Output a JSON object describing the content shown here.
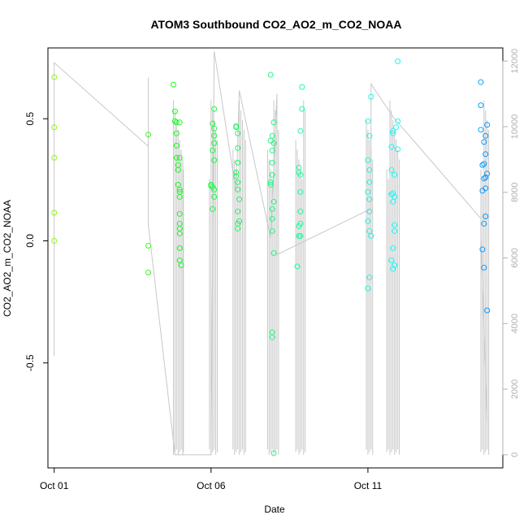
{
  "chart_data": {
    "type": "scatter",
    "title": "ATOM3 Southbound CO2_AO2_m_CO2_NOAA",
    "xlabel": "Date",
    "ylabel": "CO2_AO2_m_CO2_NOAA",
    "x_unit": "day of October 2017 (fractional)",
    "xlim": [
      0.8,
      15.3
    ],
    "ylim": [
      -0.93,
      0.79
    ],
    "y2lim": [
      -400,
      12400
    ],
    "x_ticks": [
      {
        "value": 1,
        "label": "Oct 01"
      },
      {
        "value": 6,
        "label": "Oct 06"
      },
      {
        "value": 11,
        "label": "Oct 11"
      }
    ],
    "y_ticks": [
      {
        "value": -0.5,
        "label": "-0.5"
      },
      {
        "value": 0.0,
        "label": "0.0"
      },
      {
        "value": 0.5,
        "label": "0.5"
      }
    ],
    "y2_ticks": [
      {
        "value": 0,
        "label": "0"
      },
      {
        "value": 2000,
        "label": "2000"
      },
      {
        "value": 4000,
        "label": "4000"
      },
      {
        "value": 6000,
        "label": "6000"
      },
      {
        "value": 8000,
        "label": "8000"
      },
      {
        "value": 10000,
        "label": "10000"
      },
      {
        "value": 12000,
        "label": "12000"
      }
    ],
    "colors": {
      "line": "#c8c8c8",
      "axis": "#000000",
      "right_axis": "#b0b0b0"
    },
    "series": [
      {
        "role": "CO2 difference (left axis)",
        "marker": "open-circle",
        "color_scale": "hue by date (yellow-green to blue)",
        "points": [
          [
            1.0,
            0.67
          ],
          [
            1.0,
            0.465
          ],
          [
            1.0,
            0.34
          ],
          [
            1.0,
            0.115
          ],
          [
            1.0,
            0.0
          ],
          [
            4.0,
            0.435
          ],
          [
            4.0,
            -0.02
          ],
          [
            4.0,
            -0.13
          ],
          [
            4.8,
            0.64
          ],
          [
            4.85,
            0.53
          ],
          [
            4.85,
            0.49
          ],
          [
            4.9,
            0.44
          ],
          [
            4.9,
            0.39
          ],
          [
            4.9,
            0.34
          ],
          [
            4.95,
            0.31
          ],
          [
            4.95,
            0.29
          ],
          [
            4.95,
            0.23
          ],
          [
            5.0,
            0.2
          ],
          [
            5.0,
            0.18
          ],
          [
            5.0,
            0.11
          ],
          [
            5.0,
            0.07
          ],
          [
            5.0,
            0.05
          ],
          [
            5.0,
            0.03
          ],
          [
            5.0,
            -0.03
          ],
          [
            5.0,
            -0.08
          ],
          [
            5.05,
            -0.1
          ],
          [
            4.9,
            0.485
          ],
          [
            5.0,
            0.485
          ],
          [
            5.0,
            0.34
          ],
          [
            5.0,
            0.21
          ],
          [
            6.1,
            0.54
          ],
          [
            6.05,
            0.48
          ],
          [
            6.1,
            0.46
          ],
          [
            6.1,
            0.43
          ],
          [
            6.1,
            0.4
          ],
          [
            6.05,
            0.37
          ],
          [
            6.1,
            0.33
          ],
          [
            6.0,
            0.23
          ],
          [
            6.05,
            0.22
          ],
          [
            6.1,
            0.21
          ],
          [
            6.1,
            0.18
          ],
          [
            6.05,
            0.13
          ],
          [
            6.0,
            0.225
          ],
          [
            6.8,
            0.47
          ],
          [
            6.85,
            0.44
          ],
          [
            6.85,
            0.38
          ],
          [
            6.85,
            0.32
          ],
          [
            6.8,
            0.28
          ],
          [
            6.85,
            0.24
          ],
          [
            6.85,
            0.21
          ],
          [
            6.9,
            0.17
          ],
          [
            6.85,
            0.12
          ],
          [
            6.9,
            0.08
          ],
          [
            6.85,
            0.07
          ],
          [
            6.85,
            0.05
          ],
          [
            6.8,
            0.265
          ],
          [
            6.8,
            0.465
          ],
          [
            7.9,
            0.68
          ],
          [
            8.0,
            0.485
          ],
          [
            7.95,
            0.43
          ],
          [
            7.9,
            0.41
          ],
          [
            8.0,
            0.4
          ],
          [
            7.95,
            0.37
          ],
          [
            7.95,
            0.32
          ],
          [
            7.95,
            0.27
          ],
          [
            7.9,
            0.24
          ],
          [
            7.9,
            0.23
          ],
          [
            8.0,
            0.16
          ],
          [
            7.95,
            0.13
          ],
          [
            7.95,
            0.09
          ],
          [
            7.95,
            0.04
          ],
          [
            8.0,
            -0.05
          ],
          [
            7.95,
            -0.375
          ],
          [
            7.95,
            -0.395
          ],
          [
            8.0,
            -0.87
          ],
          [
            8.9,
            0.63
          ],
          [
            8.9,
            0.54
          ],
          [
            8.85,
            0.45
          ],
          [
            8.8,
            0.3
          ],
          [
            8.8,
            0.28
          ],
          [
            8.85,
            0.27
          ],
          [
            8.85,
            0.2
          ],
          [
            8.85,
            0.12
          ],
          [
            8.85,
            0.07
          ],
          [
            8.8,
            0.06
          ],
          [
            8.8,
            0.02
          ],
          [
            8.85,
            0.02
          ],
          [
            8.75,
            -0.105
          ],
          [
            11.1,
            0.59
          ],
          [
            11.0,
            0.49
          ],
          [
            11.05,
            0.43
          ],
          [
            11.0,
            0.33
          ],
          [
            11.05,
            0.29
          ],
          [
            11.05,
            0.24
          ],
          [
            11.0,
            0.2
          ],
          [
            11.05,
            0.17
          ],
          [
            11.05,
            0.12
          ],
          [
            11.0,
            0.08
          ],
          [
            11.05,
            0.04
          ],
          [
            11.1,
            0.02
          ],
          [
            11.05,
            -0.15
          ],
          [
            11.0,
            -0.195
          ],
          [
            11.95,
            0.735
          ],
          [
            11.95,
            0.49
          ],
          [
            11.9,
            0.465
          ],
          [
            11.8,
            0.45
          ],
          [
            11.8,
            0.44
          ],
          [
            11.75,
            0.385
          ],
          [
            11.75,
            0.29
          ],
          [
            11.85,
            0.27
          ],
          [
            11.8,
            0.195
          ],
          [
            11.75,
            0.19
          ],
          [
            11.85,
            0.18
          ],
          [
            11.8,
            0.16
          ],
          [
            11.85,
            0.065
          ],
          [
            11.85,
            0.04
          ],
          [
            11.8,
            -0.03
          ],
          [
            11.75,
            -0.08
          ],
          [
            11.85,
            -0.1
          ],
          [
            11.8,
            -0.115
          ],
          [
            11.95,
            0.375
          ],
          [
            14.6,
            0.65
          ],
          [
            14.6,
            0.555
          ],
          [
            14.8,
            0.475
          ],
          [
            14.6,
            0.455
          ],
          [
            14.75,
            0.43
          ],
          [
            14.7,
            0.405
          ],
          [
            14.75,
            0.355
          ],
          [
            14.7,
            0.315
          ],
          [
            14.65,
            0.31
          ],
          [
            14.8,
            0.275
          ],
          [
            14.75,
            0.26
          ],
          [
            14.7,
            0.255
          ],
          [
            14.75,
            0.215
          ],
          [
            14.65,
            0.205
          ],
          [
            14.75,
            0.1
          ],
          [
            14.7,
            0.07
          ],
          [
            14.65,
            -0.035
          ],
          [
            14.7,
            -0.11
          ],
          [
            14.8,
            -0.285
          ]
        ]
      },
      {
        "role": "altitude trace (right axis)",
        "marker": "line",
        "color": "#c8c8c8",
        "vertices": [
          [
            1.0,
            3000
          ],
          [
            1.0,
            11950
          ],
          [
            4.0,
            9400
          ],
          [
            4.0,
            11500
          ],
          [
            4.0,
            7000
          ],
          [
            4.85,
            0
          ],
          [
            6.0,
            0
          ],
          [
            6.1,
            12300
          ],
          [
            6.8,
            8000
          ],
          [
            6.9,
            11100
          ],
          [
            7.9,
            6600
          ],
          [
            8.1,
            11000
          ],
          [
            8.1,
            6100
          ],
          [
            11.1,
            7500
          ],
          [
            11.1,
            11300
          ],
          [
            11.8,
            10300
          ],
          [
            14.6,
            7200
          ],
          [
            14.6,
            6700
          ],
          [
            14.8,
            1000
          ]
        ],
        "dense_profile_days": [
          4.8,
          4.85,
          4.9,
          4.95,
          5.0,
          5.05,
          5.1,
          5.12,
          5.95,
          6.0,
          6.05,
          6.1,
          6.15,
          6.2,
          6.7,
          6.75,
          6.8,
          6.85,
          6.9,
          6.95,
          7.0,
          7.05,
          7.1,
          7.8,
          7.85,
          7.9,
          7.95,
          8.0,
          8.05,
          8.1,
          8.15,
          8.7,
          8.75,
          8.8,
          8.85,
          8.9,
          8.95,
          9.0,
          10.95,
          11.0,
          11.05,
          11.1,
          11.15,
          11.6,
          11.65,
          11.7,
          11.75,
          11.8,
          11.85,
          11.9,
          11.95,
          12.0,
          14.6,
          14.65,
          14.7,
          14.75,
          14.8,
          14.85
        ],
        "profile_range": [
          0,
          10800
        ]
      }
    ]
  }
}
